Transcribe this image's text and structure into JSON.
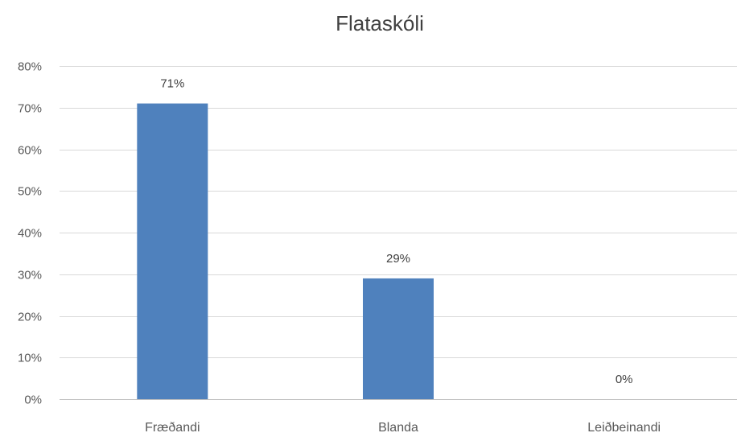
{
  "chart_data": {
    "type": "bar",
    "title": "Flataskóli",
    "categories": [
      "Fræðandi",
      "Blanda",
      "Leiðbeinandi"
    ],
    "values": [
      71,
      29,
      0
    ],
    "data_labels": [
      "71%",
      "29%",
      "0%"
    ],
    "ylim": [
      0,
      80
    ],
    "y_ticks": [
      0,
      10,
      20,
      30,
      40,
      50,
      60,
      70,
      80
    ],
    "y_tick_labels": [
      "0%",
      "10%",
      "20%",
      "30%",
      "40%",
      "50%",
      "60%",
      "70%",
      "80%"
    ],
    "xlabel": "",
    "ylabel": "",
    "grid": true,
    "legend": "none",
    "bar_color": "#4f81bd"
  }
}
